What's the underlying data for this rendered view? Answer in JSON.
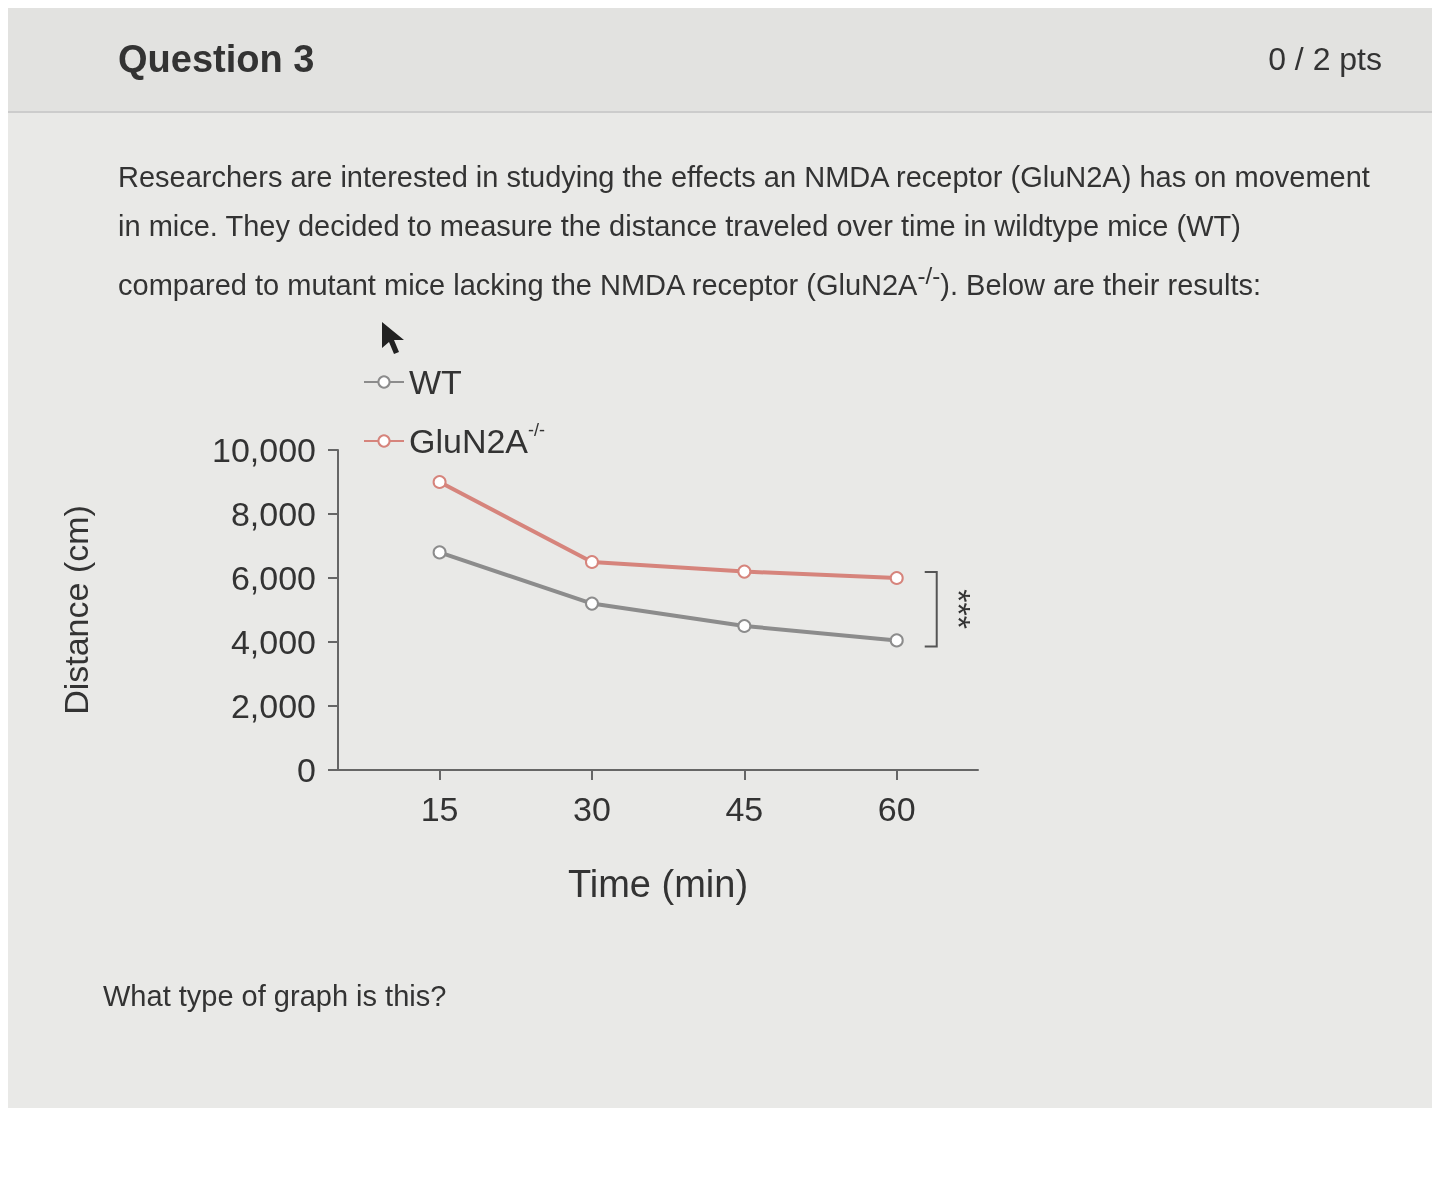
{
  "chart_data": {
    "type": "line",
    "title": "Question 3",
    "subtitle": "Researchers are interested in studying the effects an NMDA receptor (GluN2A) has on movement in mice. They decided to measure the distance traveled over time in wildtype mice (WT) compared to mutant mice lacking the NMDA receptor (GluN2A$^{-/-}$). Below are their results:",
    "xlabel": "Time (min)",
    "ylabel": "Distance (cm)",
    "x": [
      15,
      30,
      45,
      60
    ],
    "series": [
      {
        "name": "WT",
        "color": "#8c8c8c",
        "values": [
          6800,
          5200,
          4500,
          4050
        ]
      },
      {
        "name": "GluN2A$^{-/-}$",
        "color": "#d6847c",
        "values": [
          9000,
          6500,
          6200,
          6000
        ]
      }
    ],
    "xlim": [
      5,
      68
    ],
    "xticks": [
      15,
      30,
      45,
      60
    ],
    "ylim": [
      0,
      10000
    ],
    "yticks": [
      0,
      {
        "value": 2000,
        "label": "2,000"
      },
      {
        "value": 4000,
        "label": "4,000"
      },
      {
        "value": 6000,
        "label": "6,000"
      },
      {
        "value": 8000,
        "label": "8,000"
      },
      {
        "value": 10000,
        "label": "10,000"
      }
    ],
    "annotations": [
      "0 / 2 pts",
      "***",
      "What type of graph is this?"
    ],
    "grid": false,
    "legend": "top",
    "marker": "circle",
    "line_style": "solid"
  }
}
